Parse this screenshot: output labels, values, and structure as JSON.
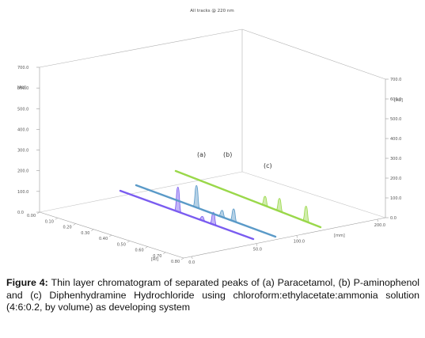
{
  "chart_data": {
    "type": "line",
    "title": "All tracks @ 220 nm",
    "z_label": "[AU]",
    "x_label": "[Rf]",
    "depth_label": "[mm]",
    "z_ticks_left": [
      "0.0",
      "100.0",
      "200.0",
      "300.0",
      "400.0",
      "500.0",
      "600.0",
      "700.0"
    ],
    "z_ticks_right": [
      "0.0",
      "100.0",
      "200.0",
      "300.0",
      "400.0",
      "500.0",
      "600.0",
      "700.0"
    ],
    "x_ticks": [
      "0.00",
      "0.10",
      "0.20",
      "0.30",
      "0.40",
      "0.50",
      "0.60",
      "0.70",
      "0.80"
    ],
    "depth_ticks": [
      "0.0",
      "50.0",
      "100.0",
      "200.0"
    ],
    "zlim": [
      0,
      700
    ],
    "xlim": [
      0,
      0.8
    ],
    "peak_labels": [
      "(a)",
      "(b)",
      "(c)"
    ],
    "series": [
      {
        "color": "#7a5cf0",
        "peaks": [
          {
            "rf": 0.46,
            "au": 240
          },
          {
            "rf": 0.57,
            "au": 40
          },
          {
            "rf": 0.62,
            "au": 120
          }
        ]
      },
      {
        "color": "#5a9ac8",
        "peaks": [
          {
            "rf": 0.46,
            "au": 215
          },
          {
            "rf": 0.57,
            "au": 65
          },
          {
            "rf": 0.62,
            "au": 120
          }
        ]
      },
      {
        "color": "#9ad84a",
        "peaks": [
          {
            "rf": 0.57,
            "au": 90
          },
          {
            "rf": 0.63,
            "au": 125
          },
          {
            "rf": 0.74,
            "au": 150
          }
        ]
      }
    ],
    "grid": false
  },
  "caption": {
    "label": "Figure 4:",
    "text": "Thin layer chromatogram of separated peaks of (a) Paracetamol, (b) P-aminophenol and (c) Diphenhydramine Hydrochloride using chloroform:ethylacetate:ammonia solution (4:6:0.2, by volume) as developing system"
  }
}
